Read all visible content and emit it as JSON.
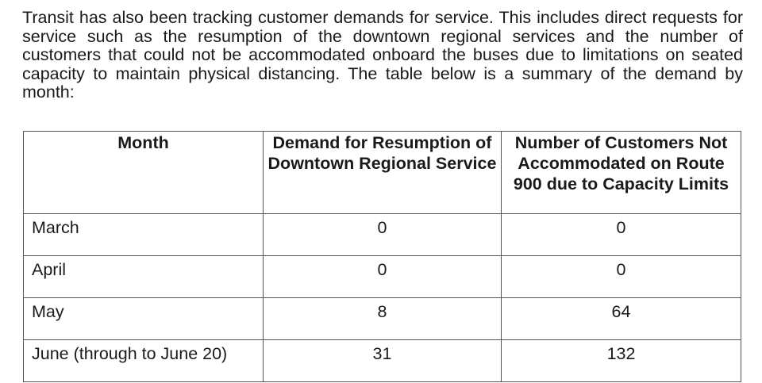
{
  "intro": {
    "paragraph": "Transit has also been tracking customer demands for service. This includes direct requests for service such as the resumption of the downtown regional services and the number of customers that could not be accommodated onboard the buses due to limitations on seated capacity to maintain physical distancing. The table below is a summary of the demand by month:"
  },
  "table": {
    "headers": [
      "Month",
      "Demand for Resumption of Downtown Regional Service",
      "Number of Customers Not Accommodated on Route 900 due to Capacity Limits"
    ],
    "rows": [
      {
        "month": "March",
        "demand": "0",
        "not_accommodated": "0"
      },
      {
        "month": "April",
        "demand": "0",
        "not_accommodated": "0"
      },
      {
        "month": "May",
        "demand": "8",
        "not_accommodated": "64"
      },
      {
        "month": "June (through to June 20)",
        "demand": "31",
        "not_accommodated": "132"
      }
    ]
  }
}
